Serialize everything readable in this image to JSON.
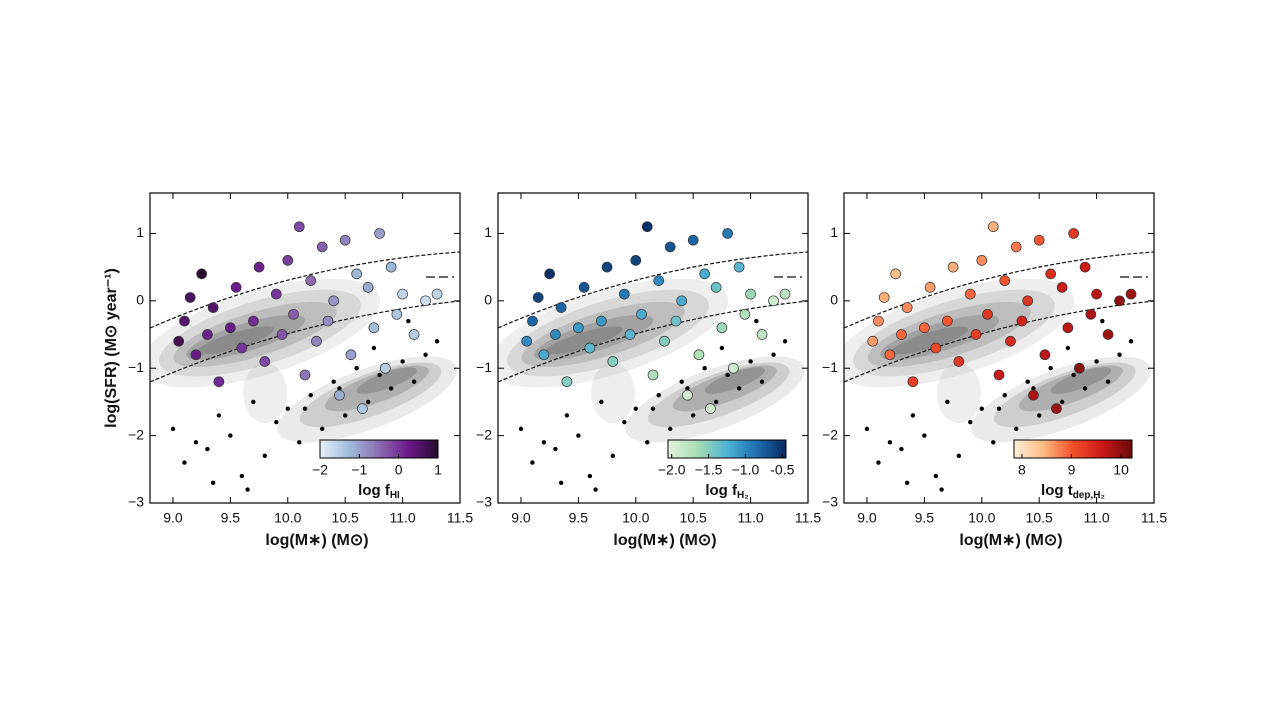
{
  "chart_data": [
    {
      "type": "scatter",
      "ylabel": "log(SFR) (M⊙ year⁻¹)",
      "xlabel": "log(M∗) (M⊙)",
      "xlim": [
        8.8,
        11.5
      ],
      "ylim": [
        -3,
        1.6
      ],
      "xticks": [
        {
          "value": 9,
          "label": "9.0"
        },
        9.5,
        {
          "value": 10,
          "label": "10.0"
        },
        10.5,
        {
          "value": 11,
          "label": "11.0"
        },
        11.5
      ],
      "yticks": [
        {
          "value": -3,
          "label": "−3"
        },
        {
          "value": -2,
          "label": "−2"
        },
        {
          "value": -1,
          "label": "−1"
        },
        0,
        1
      ],
      "x": [
        9.05,
        9.1,
        9.15,
        9.2,
        9.25,
        9.3,
        9.35,
        9.4,
        9.5,
        9.55,
        9.6,
        9.7,
        9.75,
        9.8,
        9.9,
        9.95,
        10.0,
        10.05,
        10.1,
        10.15,
        10.2,
        10.25,
        10.3,
        10.35,
        10.4,
        10.45,
        10.5,
        10.55,
        10.6,
        10.65,
        10.7,
        10.75,
        10.8,
        10.85,
        10.9,
        10.95,
        11.0,
        11.1,
        11.2,
        11.3
      ],
      "y": [
        -0.6,
        -0.3,
        0.05,
        -0.8,
        0.4,
        -0.5,
        -0.1,
        -1.2,
        -0.4,
        0.2,
        -0.7,
        -0.3,
        0.5,
        -0.9,
        0.1,
        -0.5,
        0.6,
        -0.2,
        1.1,
        -1.1,
        0.3,
        -0.6,
        0.8,
        -0.3,
        0.0,
        -1.4,
        0.9,
        -0.8,
        0.4,
        -1.6,
        0.2,
        -0.4,
        1.0,
        -1.0,
        0.5,
        -0.2,
        0.1,
        -0.5,
        0.0,
        0.1
      ],
      "color_values": [
        0.7,
        0.5,
        0.6,
        0.3,
        1.0,
        0.2,
        0.5,
        0.1,
        0.3,
        0.2,
        0.0,
        0.1,
        0.2,
        -0.2,
        0.0,
        -0.3,
        -0.1,
        -0.4,
        -0.2,
        -0.6,
        -0.5,
        -0.7,
        -0.4,
        -0.8,
        -0.9,
        -1.1,
        -0.7,
        -1.0,
        -1.2,
        -1.4,
        -1.1,
        -1.3,
        -1.0,
        -1.5,
        -1.2,
        -1.4,
        -1.6,
        -1.5,
        -1.7,
        -1.6
      ],
      "x_undetected": [
        9.0,
        9.1,
        9.2,
        9.3,
        9.4,
        9.5,
        9.6,
        9.7,
        9.8,
        9.9,
        10.0,
        10.1,
        10.2,
        10.3,
        10.4,
        10.5,
        10.6,
        10.7,
        10.8,
        10.9,
        11.0,
        11.1,
        11.2,
        11.3,
        9.35,
        9.65,
        10.15,
        10.45,
        10.75,
        11.05
      ],
      "y_undetected": [
        -1.9,
        -2.4,
        -2.1,
        -2.2,
        -1.7,
        -2.0,
        -2.6,
        -1.5,
        -2.3,
        -1.8,
        -1.6,
        -2.1,
        -1.4,
        -1.9,
        -1.2,
        -1.7,
        -1.0,
        -1.5,
        -1.1,
        -1.3,
        -0.9,
        -1.2,
        -0.8,
        -0.6,
        -2.7,
        -2.8,
        -1.6,
        -1.3,
        -0.7,
        -0.3
      ],
      "colorbar": {
        "label": "log f",
        "label_sub": "HI",
        "lim": [
          -2,
          1
        ],
        "ticks": [
          {
            "value": -2,
            "label": "−2"
          },
          {
            "value": -1,
            "label": "−1"
          },
          0,
          1
        ],
        "colormap": [
          "#e6f0f8",
          "#9ebcda",
          "#8c6bb1",
          "#6a1b8a",
          "#2a0a2e"
        ]
      }
    },
    {
      "type": "scatter",
      "xlabel": "log(M∗) (M⊙)",
      "xlim": [
        8.8,
        11.5
      ],
      "ylim": [
        -3,
        1.6
      ],
      "xticks": [
        {
          "value": 9,
          "label": "9.0"
        },
        9.5,
        {
          "value": 10,
          "label": "10.0"
        },
        10.5,
        {
          "value": 11,
          "label": "11.0"
        },
        11.5
      ],
      "yticks": [
        {
          "value": -3,
          "label": "−3"
        },
        {
          "value": -2,
          "label": "−2"
        },
        {
          "value": -1,
          "label": "−1"
        },
        0,
        1
      ],
      "x": [
        9.05,
        9.1,
        9.15,
        9.2,
        9.25,
        9.3,
        9.35,
        9.4,
        9.5,
        9.55,
        9.6,
        9.7,
        9.75,
        9.8,
        9.9,
        9.95,
        10.0,
        10.05,
        10.1,
        10.15,
        10.2,
        10.25,
        10.3,
        10.35,
        10.4,
        10.45,
        10.5,
        10.55,
        10.6,
        10.65,
        10.7,
        10.75,
        10.8,
        10.85,
        10.9,
        10.95,
        11.0,
        11.1,
        11.2,
        11.3
      ],
      "y": [
        -0.6,
        -0.3,
        0.05,
        -0.8,
        0.4,
        -0.5,
        -0.1,
        -1.2,
        -0.4,
        0.2,
        -0.7,
        -0.3,
        0.5,
        -0.9,
        0.1,
        -0.5,
        0.6,
        -0.2,
        1.1,
        -1.1,
        0.3,
        -0.6,
        0.8,
        -0.3,
        0.0,
        -1.4,
        0.9,
        -0.8,
        0.4,
        -1.6,
        0.2,
        -0.4,
        1.0,
        -1.0,
        0.5,
        -0.2,
        0.1,
        -0.5,
        0.0,
        0.1
      ],
      "color_values": [
        -1.0,
        -0.8,
        -0.6,
        -1.2,
        -0.5,
        -1.0,
        -0.8,
        -1.5,
        -1.1,
        -0.7,
        -1.3,
        -1.1,
        -0.6,
        -1.5,
        -0.9,
        -1.3,
        -0.6,
        -1.2,
        -0.5,
        -1.7,
        -1.0,
        -1.5,
        -0.7,
        -1.4,
        -1.2,
        -1.9,
        -0.8,
        -1.7,
        -1.2,
        -1.9,
        -1.4,
        -1.6,
        -0.9,
        -1.9,
        -1.3,
        -1.7,
        -1.6,
        -1.8,
        -1.9,
        -1.8
      ],
      "x_undetected": [
        9.0,
        9.1,
        9.2,
        9.3,
        9.4,
        9.5,
        9.6,
        9.7,
        9.8,
        9.9,
        10.0,
        10.1,
        10.2,
        10.3,
        10.4,
        10.5,
        10.6,
        10.7,
        10.8,
        10.9,
        11.0,
        11.1,
        11.2,
        11.3,
        9.35,
        9.65,
        10.15,
        10.45,
        10.75,
        11.05
      ],
      "y_undetected": [
        -1.9,
        -2.4,
        -2.1,
        -2.2,
        -1.7,
        -2.0,
        -2.6,
        -1.5,
        -2.3,
        -1.8,
        -1.6,
        -2.1,
        -1.4,
        -1.9,
        -1.2,
        -1.7,
        -1.0,
        -1.5,
        -1.1,
        -1.3,
        -0.9,
        -1.2,
        -0.8,
        -0.6,
        -2.7,
        -2.8,
        -1.6,
        -1.3,
        -0.7,
        -0.3
      ],
      "colorbar": {
        "label": "log f",
        "label_sub": "H₂",
        "lim": [
          -2.05,
          -0.45
        ],
        "ticks": [
          {
            "value": -2,
            "label": "−2.0"
          },
          {
            "value": -1.5,
            "label": "−1.5"
          },
          {
            "value": -1,
            "label": "−1.0"
          },
          -0.5
        ],
        "colormap": [
          "#e4f4dc",
          "#a8ddb5",
          "#4eb3d3",
          "#1f6fb0",
          "#08285e"
        ]
      }
    },
    {
      "type": "scatter",
      "xlabel": "log(M∗) (M⊙)",
      "xlim": [
        8.8,
        11.5
      ],
      "ylim": [
        -3,
        1.6
      ],
      "xticks": [
        {
          "value": 9,
          "label": "9.0"
        },
        9.5,
        {
          "value": 10,
          "label": "10.0"
        },
        10.5,
        {
          "value": 11,
          "label": "11.0"
        },
        11.5
      ],
      "yticks": [
        {
          "value": -3,
          "label": "−3"
        },
        {
          "value": -2,
          "label": "−2"
        },
        {
          "value": -1,
          "label": "−1"
        },
        0,
        1
      ],
      "x": [
        9.05,
        9.1,
        9.15,
        9.2,
        9.25,
        9.3,
        9.35,
        9.4,
        9.5,
        9.55,
        9.6,
        9.7,
        9.75,
        9.8,
        9.9,
        9.95,
        10.0,
        10.05,
        10.1,
        10.15,
        10.2,
        10.25,
        10.3,
        10.35,
        10.4,
        10.45,
        10.5,
        10.55,
        10.6,
        10.65,
        10.7,
        10.75,
        10.8,
        10.85,
        10.9,
        10.95,
        11.0,
        11.1,
        11.2,
        11.3
      ],
      "y": [
        -0.6,
        -0.3,
        0.05,
        -0.8,
        0.4,
        -0.5,
        -0.1,
        -1.2,
        -0.4,
        0.2,
        -0.7,
        -0.3,
        0.5,
        -0.9,
        0.1,
        -0.5,
        0.6,
        -0.2,
        1.1,
        -1.1,
        0.3,
        -0.6,
        0.8,
        -0.3,
        0.0,
        -1.4,
        0.9,
        -0.8,
        0.4,
        -1.6,
        0.2,
        -0.4,
        1.0,
        -1.0,
        0.5,
        -0.2,
        0.1,
        -0.5,
        0.0,
        0.1
      ],
      "color_values": [
        8.6,
        8.7,
        8.5,
        8.9,
        8.4,
        8.9,
        8.7,
        9.2,
        8.9,
        8.6,
        9.1,
        9.0,
        8.5,
        9.3,
        8.9,
        9.2,
        8.7,
        9.3,
        8.5,
        9.6,
        9.0,
        9.4,
        8.8,
        9.5,
        9.3,
        9.8,
        9.0,
        9.7,
        9.4,
        9.9,
        9.6,
        9.7,
        9.3,
        10.0,
        9.6,
        9.8,
        9.7,
        9.9,
        10.0,
        9.9
      ],
      "x_undetected": [
        9.0,
        9.1,
        9.2,
        9.3,
        9.4,
        9.5,
        9.6,
        9.7,
        9.8,
        9.9,
        10.0,
        10.1,
        10.2,
        10.3,
        10.4,
        10.5,
        10.6,
        10.7,
        10.8,
        10.9,
        11.0,
        11.1,
        11.2,
        11.3,
        9.35,
        9.65,
        10.15,
        10.45,
        10.75,
        11.05
      ],
      "y_undetected": [
        -1.9,
        -2.4,
        -2.1,
        -2.2,
        -1.7,
        -2.0,
        -2.6,
        -1.5,
        -2.3,
        -1.8,
        -1.6,
        -2.1,
        -1.4,
        -1.9,
        -1.2,
        -1.7,
        -1.0,
        -1.5,
        -1.1,
        -1.3,
        -0.9,
        -1.2,
        -0.8,
        -0.6,
        -2.7,
        -2.8,
        -1.6,
        -1.3,
        -0.7,
        -0.3
      ],
      "colorbar": {
        "label": "log t",
        "label_sub": "dep,H₂",
        "lim": [
          7.84,
          10.22
        ],
        "ticks": [
          8,
          9,
          10
        ],
        "colormap": [
          "#fff0d8",
          "#fdbb84",
          "#f4502a",
          "#c81818",
          "#6a0a0a"
        ]
      }
    }
  ]
}
